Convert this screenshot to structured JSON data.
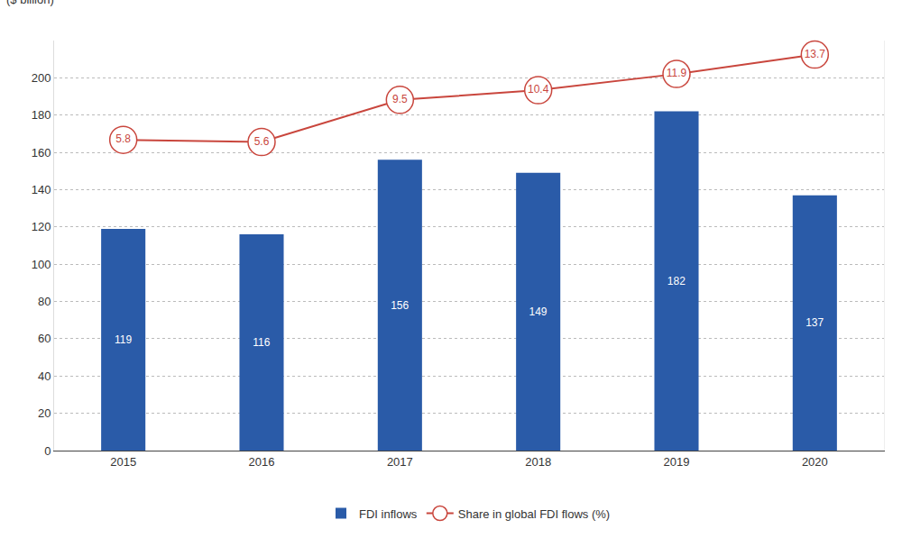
{
  "chart_data": {
    "type": "bar",
    "y_label": "($ billion)",
    "categories": [
      "2015",
      "2016",
      "2017",
      "2018",
      "2019",
      "2020"
    ],
    "series": [
      {
        "name": "FDI inflows",
        "type": "bar",
        "color": "#2a5ba8",
        "values": [
          119,
          116,
          156,
          149,
          182,
          137
        ]
      },
      {
        "name": "Share in global FDI flows (%)",
        "type": "line",
        "axis": "y2",
        "color": "#c9463d",
        "marker": "circle",
        "values": [
          5.8,
          5.6,
          9.5,
          10.4,
          11.9,
          13.7
        ]
      }
    ],
    "ylim": [
      0,
      220
    ],
    "yticks": [
      0,
      20,
      40,
      60,
      80,
      100,
      120,
      140,
      160,
      180,
      200
    ],
    "y2lim": [
      -23,
      15
    ],
    "grid": true,
    "legend": "bottom",
    "data_labels": true,
    "tick_labels": "y"
  }
}
